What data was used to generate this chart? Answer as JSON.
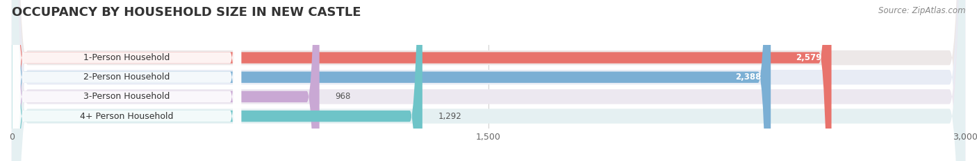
{
  "title": "OCCUPANCY BY HOUSEHOLD SIZE IN NEW CASTLE",
  "source": "Source: ZipAtlas.com",
  "categories": [
    "1-Person Household",
    "2-Person Household",
    "3-Person Household",
    "4+ Person Household"
  ],
  "values": [
    2579,
    2388,
    968,
    1292
  ],
  "bar_colors": [
    "#e8736c",
    "#7bafd4",
    "#c9a8d4",
    "#6ec4c8"
  ],
  "bar_bg_colors": [
    "#ede8e8",
    "#e8ecf5",
    "#ece8f0",
    "#e5f0f2"
  ],
  "xlim": [
    0,
    3000
  ],
  "xticks": [
    0,
    1500,
    3000
  ],
  "title_fontsize": 13,
  "source_fontsize": 8.5,
  "label_fontsize": 9,
  "value_fontsize": 8.5,
  "tick_fontsize": 9,
  "bg_color": "#ffffff"
}
